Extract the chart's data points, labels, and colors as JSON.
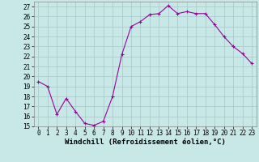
{
  "x": [
    0,
    1,
    2,
    3,
    4,
    5,
    6,
    7,
    8,
    9,
    10,
    11,
    12,
    13,
    14,
    15,
    16,
    17,
    18,
    19,
    20,
    21,
    22,
    23
  ],
  "y": [
    19.5,
    19.0,
    16.2,
    17.8,
    16.5,
    15.3,
    15.1,
    15.5,
    18.0,
    22.2,
    25.0,
    25.5,
    26.2,
    26.3,
    27.1,
    26.3,
    26.5,
    26.3,
    26.3,
    25.2,
    24.0,
    23.0,
    22.3,
    21.3
  ],
  "line_color": "#990099",
  "marker": "+",
  "marker_color": "#990099",
  "marker_size": 3,
  "marker_linewidth": 0.8,
  "xlabel": "Windchill (Refroidissement éolien,°C)",
  "xlim": [
    -0.5,
    23.5
  ],
  "ylim": [
    15,
    27.5
  ],
  "yticks": [
    15,
    16,
    17,
    18,
    19,
    20,
    21,
    22,
    23,
    24,
    25,
    26,
    27
  ],
  "xticks": [
    0,
    1,
    2,
    3,
    4,
    5,
    6,
    7,
    8,
    9,
    10,
    11,
    12,
    13,
    14,
    15,
    16,
    17,
    18,
    19,
    20,
    21,
    22,
    23
  ],
  "bg_color": "#c8e8e8",
  "grid_color": "#a8c8c8",
  "tick_fontsize": 5.5,
  "xlabel_fontsize": 6.5,
  "linewidth": 0.8
}
